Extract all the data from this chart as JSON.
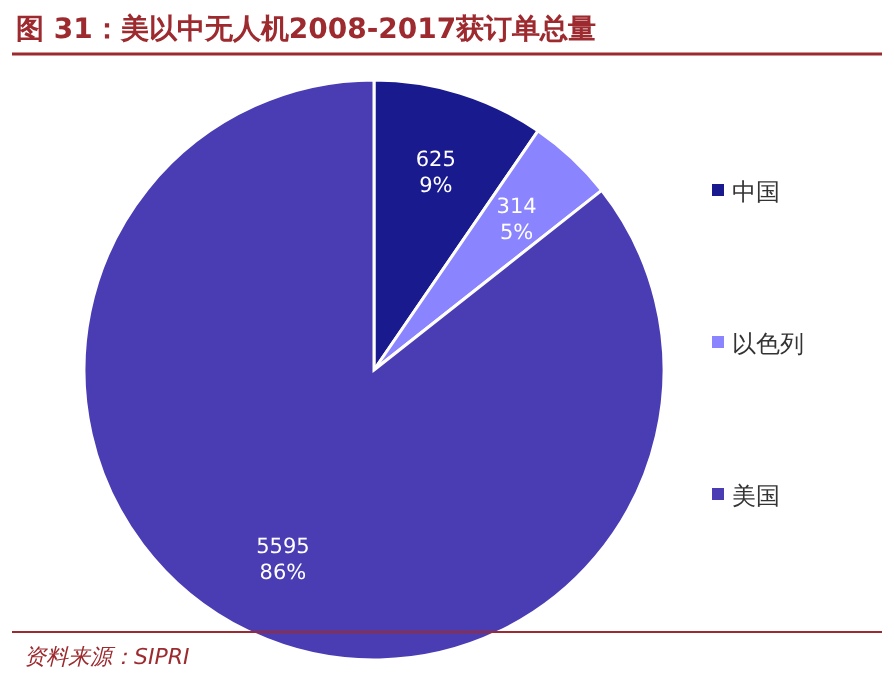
{
  "chart_data": {
    "type": "pie",
    "title": "图 31：美以中无人机2008-2017获订单总量",
    "categories": [
      "中国",
      "以色列",
      "美国"
    ],
    "values": [
      625,
      314,
      5595
    ],
    "colors": [
      "#1a1a8f",
      "#8a84ff",
      "#4a3db4"
    ],
    "value_labels": [
      "625\n9%",
      "314\n5%",
      "5595\n86%"
    ],
    "legend": "right",
    "annotations": [
      "资料来源：SIPRI"
    ]
  }
}
